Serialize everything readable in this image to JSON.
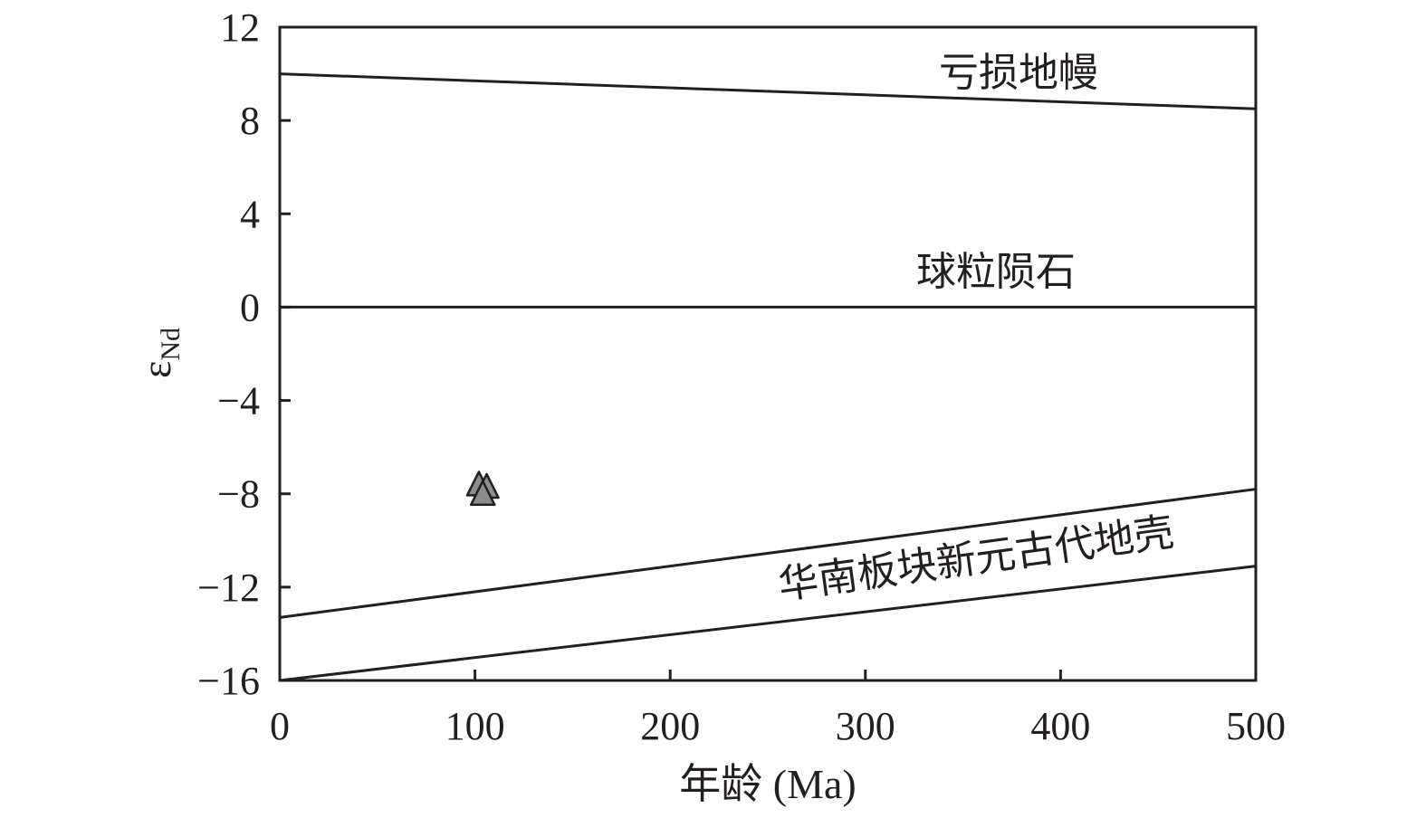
{
  "chart_data": {
    "type": "scatter",
    "title": "",
    "xlabel": "年龄 (Ma)",
    "ylabel": "ε",
    "ylabel_subscript": "Nd",
    "xlim": [
      0,
      500
    ],
    "ylim": [
      -16,
      12
    ],
    "x_ticks": [
      0,
      100,
      200,
      300,
      400,
      500
    ],
    "y_ticks": [
      12,
      8,
      4,
      0,
      -4,
      -8,
      -12,
      -16
    ],
    "x_tick_labels": [
      "0",
      "100",
      "200",
      "300",
      "400",
      "500"
    ],
    "y_tick_labels": [
      "12",
      "8",
      "4",
      "0",
      "−4",
      "−8",
      "−12",
      "−16"
    ],
    "grid": false,
    "reference_lines": [
      {
        "label": "亏损地幔",
        "x": [
          0,
          500
        ],
        "y": [
          10.0,
          8.5
        ]
      },
      {
        "label": "球粒陨石",
        "x": [
          0,
          500
        ],
        "y": [
          0,
          0
        ]
      },
      {
        "label": "华南板块新元古代地壳",
        "x": [
          0,
          500
        ],
        "y": [
          -13.3,
          -7.8
        ]
      },
      {
        "label": "",
        "x": [
          0,
          500
        ],
        "y": [
          -16.0,
          -11.1
        ]
      }
    ],
    "series": [
      {
        "marker": "triangle",
        "color": "#8c8c8c",
        "x": [
          102,
          106,
          104
        ],
        "y": [
          -7.6,
          -7.7,
          -8.0
        ]
      }
    ]
  }
}
